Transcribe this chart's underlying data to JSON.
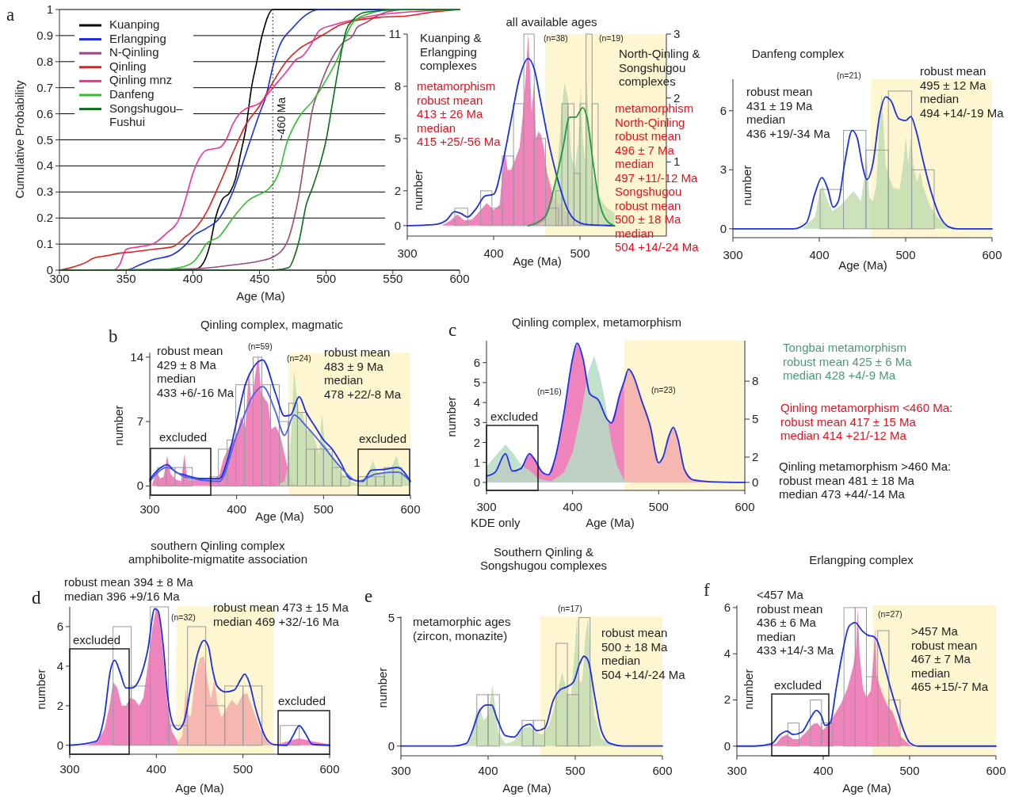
{
  "chart_data": [
    {
      "type": "line",
      "xlabel": "Age (Ma)",
      "ylabel": "Cumulative Probability",
      "xlim": [
        300,
        600
      ],
      "ylim": [
        0,
        1
      ],
      "xticks": [
        300,
        350,
        400,
        450,
        500,
        550,
        600
      ],
      "yticks": [
        0,
        0.1,
        0.2,
        0.3,
        0.4,
        0.5,
        0.6,
        0.7,
        0.8,
        0.9,
        1
      ],
      "grid": "y",
      "legend": "top left",
      "annotations": [
        "a"
      ],
      "ref_lines": [
        {
          "axis": "x",
          "value": 460,
          "label": "~460 Ma",
          "line_style": "dotted",
          "color": "#333333"
        }
      ],
      "series": [
        {
          "name": "Kuanping",
          "color": "#000000",
          "x": [
            300,
            400,
            405,
            410,
            413,
            417,
            422,
            428,
            432,
            436,
            440,
            444,
            448,
            451,
            453,
            456,
            460,
            600
          ],
          "values": [
            0,
            0,
            0.01,
            0.05,
            0.1,
            0.2,
            0.27,
            0.3,
            0.35,
            0.45,
            0.55,
            0.7,
            0.8,
            0.88,
            0.92,
            0.97,
            1,
            1
          ]
        },
        {
          "name": "Erlangping",
          "color": "#1a2ee6",
          "x": [
            300,
            350,
            360,
            370,
            385,
            395,
            400,
            410,
            420,
            430,
            440,
            450,
            455,
            460,
            465,
            475,
            485,
            495,
            600
          ],
          "values": [
            0,
            0,
            0.02,
            0.04,
            0.06,
            0.1,
            0.13,
            0.16,
            0.2,
            0.3,
            0.45,
            0.6,
            0.67,
            0.78,
            0.86,
            0.93,
            0.98,
            1,
            1
          ]
        },
        {
          "name": "N-Qinling",
          "color": "#9b4a7e",
          "x": [
            300,
            400,
            430,
            450,
            460,
            470,
            476,
            480,
            483,
            486,
            489,
            495,
            503,
            512,
            520,
            523,
            530,
            540,
            545,
            560,
            600
          ],
          "values": [
            0,
            0.005,
            0.02,
            0.035,
            0.05,
            0.1,
            0.2,
            0.3,
            0.4,
            0.5,
            0.6,
            0.7,
            0.8,
            0.87,
            0.9,
            0.93,
            0.95,
            0.98,
            0.99,
            1,
            1
          ]
        },
        {
          "name": "Qinling",
          "color": "#e0201e",
          "x": [
            300,
            305,
            315,
            320,
            325,
            335,
            345,
            355,
            370,
            385,
            395,
            400,
            410,
            420,
            430,
            440,
            450,
            460,
            470,
            480,
            490,
            500,
            510,
            520,
            540,
            560,
            580,
            600
          ],
          "values": [
            0,
            0.005,
            0.02,
            0.03,
            0.045,
            0.055,
            0.065,
            0.07,
            0.08,
            0.09,
            0.13,
            0.15,
            0.22,
            0.33,
            0.45,
            0.56,
            0.63,
            0.72,
            0.8,
            0.85,
            0.88,
            0.91,
            0.94,
            0.955,
            0.97,
            0.975,
            0.99,
            1
          ]
        },
        {
          "name": "Qinling mnz",
          "color": "#f0309a",
          "x": [
            300,
            340,
            345,
            350,
            360,
            370,
            380,
            390,
            395,
            400,
            405,
            410,
            420,
            425,
            430,
            435,
            440,
            450,
            460,
            470,
            478,
            482,
            488,
            495,
            505,
            520,
            540,
            560,
            600
          ],
          "values": [
            0,
            0,
            0.02,
            0.08,
            0.09,
            0.1,
            0.14,
            0.2,
            0.28,
            0.37,
            0.43,
            0.46,
            0.47,
            0.5,
            0.56,
            0.6,
            0.62,
            0.64,
            0.7,
            0.76,
            0.81,
            0.82,
            0.86,
            0.92,
            0.94,
            0.96,
            0.98,
            0.99,
            1
          ]
        },
        {
          "name": "Danfeng",
          "color": "#2ec02a",
          "x": [
            300,
            370,
            390,
            400,
            405,
            410,
            420,
            430,
            440,
            460,
            465,
            470,
            480,
            490,
            500,
            510,
            515,
            520,
            530,
            550,
            600
          ],
          "values": [
            0,
            0,
            0.01,
            0.03,
            0.06,
            0.1,
            0.13,
            0.2,
            0.26,
            0.33,
            0.38,
            0.48,
            0.59,
            0.65,
            0.73,
            0.83,
            0.9,
            0.95,
            0.98,
            1,
            1
          ]
        },
        {
          "name": "Songshugou–\nFushui",
          "color": "#0a6e1e",
          "x": [
            300,
            460,
            472,
            476,
            480,
            485,
            490,
            495,
            500,
            505,
            510,
            515,
            520,
            530,
            560,
            600
          ],
          "values": [
            0,
            0,
            0.01,
            0.05,
            0.12,
            0.25,
            0.32,
            0.4,
            0.5,
            0.65,
            0.8,
            0.92,
            0.96,
            0.99,
            1,
            1
          ]
        }
      ]
    },
    {
      "type": "area",
      "title": "all available ages",
      "xlabel": "Age (Ma)",
      "ylabel": "number",
      "xlim": [
        300,
        600
      ],
      "ylim": [
        -0.6,
        11
      ],
      "xticks": [
        300,
        400,
        500
      ],
      "yticks": [
        0,
        2,
        5,
        8,
        11
      ],
      "y2lim": [
        -0.16,
        3
      ],
      "y2ticks": [
        1,
        2,
        3
      ],
      "bands": [
        {
          "axis": "x",
          "from": 460,
          "to": 600,
          "color": "#fdf6d0"
        }
      ],
      "annotations": [
        "Kuanping &\nErlangping\ncomplexes",
        "metamorphism\nrobust mean\n413 ± 26 Ma\nmedian\n415 +25/-56 Ma",
        "(n=38)",
        "(n=19)",
        "North-Qinling &\nSongshugou\ncomplexes",
        "metamorphism\nNorth-Qinling\nrobust mean\n496 ± 7 Ma\nmedian\n497 +11/-12 Ma\nSongshugou\nrobust mean\n500 ± 18 Ma\nmedian\n504 +14/-24 Ma"
      ],
      "series": [
        {
          "type": "area",
          "color": "#ec6fb2",
          "x": [
            340,
            350,
            358,
            366,
            375,
            385,
            392,
            400,
            407,
            411,
            413,
            416,
            420,
            425,
            430,
            434,
            437,
            440,
            442,
            444,
            447,
            449,
            452,
            455,
            458,
            462,
            470,
            478,
            485,
            495,
            505,
            515
          ],
          "values": [
            0,
            0.3,
            0.65,
            0.3,
            0.35,
            0.9,
            1.3,
            0.9,
            1.2,
            3.5,
            4.4,
            3.2,
            3.2,
            3.8,
            4.5,
            6.5,
            8.5,
            11,
            9,
            6.5,
            8.3,
            5,
            5.4,
            5.2,
            4.5,
            3,
            1.5,
            1.2,
            0.8,
            0.3,
            0.05,
            0
          ]
        },
        {
          "type": "area",
          "color": "#c2ddb0",
          "axis": "y2",
          "x": [
            450,
            460,
            468,
            474,
            478,
            482,
            486,
            490,
            494,
            498,
            501,
            503,
            506,
            508,
            511,
            515,
            520,
            530,
            540
          ],
          "values": [
            0,
            0.1,
            0.4,
            0.9,
            1.7,
            2.25,
            2.0,
            1.1,
            0.9,
            1.3,
            2.2,
            1.4,
            1.0,
            2.3,
            1.3,
            0.8,
            0.5,
            0.3,
            0.2
          ]
        },
        {
          "type": "histogram",
          "color": "#9a9a9a",
          "bins": [
            355,
            370,
            385,
            398,
            410,
            423,
            435,
            447,
            460,
            475
          ],
          "values": [
            1,
            0,
            2,
            1,
            4,
            7,
            11,
            5,
            1
          ]
        },
        {
          "type": "histogram",
          "color": "#9a9a9a",
          "bins": [
            472,
            479,
            486,
            493,
            500,
            507,
            514,
            521
          ],
          "values": [
            2,
            7,
            7,
            3,
            7,
            11,
            7
          ]
        },
        {
          "type": "line",
          "color": "#1a2ee6",
          "x": [
            300,
            330,
            345,
            355,
            362,
            370,
            380,
            390,
            400,
            410,
            420,
            430,
            440,
            447,
            455,
            465,
            475,
            485,
            495,
            510,
            540
          ],
          "values": [
            0,
            0.05,
            0.3,
            0.8,
            0.7,
            0.5,
            1,
            1.7,
            1.8,
            3.5,
            6,
            8.5,
            9.6,
            9,
            7,
            4.5,
            2.5,
            1,
            0.3,
            0.05,
            0
          ]
        },
        {
          "type": "line",
          "color": "#1c9a3c",
          "axis": "y2",
          "x": [
            440,
            460,
            470,
            480,
            488,
            495,
            503,
            508,
            515,
            522,
            530,
            540
          ],
          "values": [
            0,
            0.15,
            0.6,
            1.2,
            1.7,
            1.7,
            1.85,
            1.7,
            1.0,
            0.4,
            0.1,
            0
          ]
        }
      ]
    },
    {
      "type": "area",
      "title": "Danfeng complex",
      "xlabel": "Age (Ma)",
      "ylabel": "number",
      "xlim": [
        300,
        600
      ],
      "ylim": [
        -0.45,
        7.6
      ],
      "xticks": [
        300,
        400,
        500,
        600
      ],
      "yticks": [
        0,
        3,
        6
      ],
      "bands": [
        {
          "axis": "x",
          "from": 460,
          "to": 600,
          "color": "#fdf6d0"
        }
      ],
      "annotations": [
        "(n=21)",
        "robust mean\n431 ± 19 Ma\nmedian\n436 +19/-34 Ma",
        "robust mean\n495 ± 12 Ma\nmedian\n494 +14/-19 Ma"
      ],
      "series": [
        {
          "type": "area",
          "color": "#c2ddb0",
          "x": [
            380,
            395,
            400,
            404,
            408,
            415,
            425,
            435,
            440,
            448,
            452,
            455,
            458,
            462,
            466,
            470,
            472,
            474,
            477,
            485,
            493,
            498,
            500,
            503,
            506,
            509,
            513,
            517,
            520,
            528,
            535,
            545,
            555,
            600
          ],
          "values": [
            0,
            0.6,
            1.8,
            2.2,
            1.6,
            0.9,
            1.2,
            1.7,
            1.9,
            1.4,
            2.5,
            3.6,
            1.6,
            1.4,
            2.2,
            5.5,
            7.0,
            5.5,
            3.2,
            2.1,
            2.0,
            3.6,
            4.7,
            3.3,
            4.7,
            3.2,
            2.4,
            2.9,
            2.2,
            1.2,
            0.7,
            0.2,
            0,
            0
          ]
        },
        {
          "type": "histogram",
          "color": "#9a9a9a",
          "bins": [
            401,
            428,
            454,
            480,
            507,
            533
          ],
          "values": [
            2,
            5,
            4,
            7,
            3
          ]
        },
        {
          "type": "line",
          "color": "#1a2ee6",
          "x": [
            300,
            370,
            385,
            395,
            403,
            410,
            416,
            422,
            430,
            438,
            444,
            450,
            455,
            462,
            470,
            477,
            483,
            492,
            500,
            506,
            512,
            520,
            530,
            540,
            550,
            560,
            600
          ],
          "values": [
            0,
            0,
            0.3,
            1.8,
            2.6,
            2.0,
            1.1,
            1.4,
            3.5,
            5.0,
            4.6,
            3.2,
            2.5,
            3.3,
            5.8,
            6.7,
            6.5,
            5.6,
            5.5,
            5.7,
            5.0,
            3.5,
            1.8,
            0.6,
            0.1,
            0,
            0
          ]
        }
      ]
    },
    {
      "type": "area",
      "title": "Qinling complex, magmatic",
      "xlabel": "Age (Ma)",
      "ylabel": "number",
      "xlim": [
        300,
        600
      ],
      "ylim": [
        -1,
        14.5
      ],
      "xticks": [
        300,
        400,
        500,
        600
      ],
      "yticks": [
        0,
        7,
        14
      ],
      "bands": [
        {
          "axis": "x",
          "from": 460,
          "to": 600,
          "color": "#fdf6d0"
        }
      ],
      "annotations": [
        "b",
        "robust mean\n429 ± 8 Ma\nmedian\n433 +6/-16 Ma",
        "(n=59)",
        "(n=24)",
        "robust mean\n483 ± 9 Ma\nmedian\n478 +22/-8 Ma",
        "excluded",
        "excluded"
      ],
      "series": [
        {
          "type": "area",
          "color": "#ec6fb2",
          "x": [
            303,
            308,
            312,
            316,
            320,
            324,
            330,
            336,
            340,
            343,
            350,
            360,
            368,
            375,
            380,
            385,
            390,
            395,
            400,
            405,
            410,
            414,
            417,
            422,
            425,
            428,
            432,
            436,
            440,
            445,
            450,
            455,
            460,
            465,
            470
          ],
          "values": [
            0.3,
            1.5,
            0.8,
            1.0,
            3.3,
            1.3,
            0.7,
            0.5,
            3.5,
            0.8,
            0.6,
            0.9,
            0.9,
            0.8,
            1.2,
            3.0,
            4.0,
            4.8,
            5.5,
            7.5,
            6.4,
            12.5,
            9.0,
            12.5,
            14.3,
            10.3,
            9.5,
            9.0,
            6.2,
            6.5,
            5.5,
            3.5,
            1.5,
            0.3,
            0
          ]
        },
        {
          "type": "area",
          "color": "#c2ddb0",
          "x": [
            445,
            455,
            460,
            463,
            466,
            469,
            472,
            476,
            480,
            485,
            490,
            495,
            498,
            502,
            508,
            515,
            520,
            530,
            540,
            550,
            557,
            562,
            570,
            578,
            584,
            590,
            600
          ],
          "values": [
            0,
            0.5,
            2.5,
            6.0,
            12.7,
            10,
            8.0,
            8.0,
            6.0,
            6.2,
            5.0,
            3.5,
            7.8,
            4.5,
            3.5,
            2.5,
            1.5,
            0.5,
            0.2,
            1.2,
            2.7,
            1.5,
            1.4,
            2.0,
            3.3,
            1.2,
            0.5
          ]
        },
        {
          "type": "histogram",
          "color": "#9a9a9a",
          "bins": [
            309,
            319,
            329,
            339,
            349,
            359,
            369,
            379,
            389,
            399,
            409,
            419,
            429,
            439,
            449,
            459
          ],
          "values": [
            2,
            2,
            2,
            2,
            0,
            0,
            1,
            4,
            5,
            11,
            11,
            14,
            11,
            11,
            7
          ]
        },
        {
          "type": "histogram",
          "color": "#9a9a9a",
          "bins": [
            460,
            470,
            480,
            490,
            500,
            510,
            520,
            530,
            540,
            550,
            560,
            570,
            580,
            590,
            600
          ],
          "values": [
            9,
            8,
            4,
            4,
            4,
            2,
            1,
            0,
            1,
            1,
            1,
            2,
            2,
            0
          ]
        },
        {
          "type": "line",
          "color": "#1a2ee6",
          "x": [
            300,
            310,
            320,
            330,
            340,
            360,
            380,
            390,
            400,
            410,
            420,
            430,
            445,
            455,
            462,
            472,
            480,
            490,
            500,
            510,
            520,
            530,
            545,
            555,
            570,
            585,
            600
          ],
          "values": [
            0.7,
            1.8,
            2.3,
            1.5,
            1.2,
            0.8,
            0.8,
            3,
            7,
            11,
            13,
            13.7,
            10,
            7.6,
            7.7,
            9.7,
            8,
            6.5,
            5,
            4,
            2.5,
            0.8,
            0.5,
            1.7,
            1.8,
            2.0,
            0.5
          ]
        },
        {
          "type": "line",
          "color": "#4a62e8",
          "x": [
            300,
            320,
            340,
            380,
            400,
            420,
            430,
            445,
            455,
            466,
            480,
            500,
            520,
            540,
            560,
            585,
            600
          ],
          "values": [
            0.5,
            2.0,
            1.0,
            0.5,
            5.5,
            10,
            10.8,
            8,
            5.5,
            7.7,
            6.5,
            4.3,
            2,
            0.5,
            1.3,
            1.5,
            0.5
          ]
        }
      ]
    },
    {
      "type": "area",
      "title": "Qinling complex, metamorphism",
      "xlabel": "Age (Ma)",
      "ylabel": "number",
      "xlim": [
        300,
        600
      ],
      "ylim": [
        -0.4,
        7.1
      ],
      "xticks": [
        300,
        400,
        500,
        600
      ],
      "yticks": [
        0,
        1,
        2,
        3,
        4,
        5,
        6
      ],
      "y2lim": [
        -0.63,
        11.2
      ],
      "y2ticks": [
        0,
        2,
        5,
        8
      ],
      "bands": [
        {
          "axis": "x",
          "from": 460,
          "to": 600,
          "color": "#fdf6d0"
        }
      ],
      "annotations": [
        "c",
        "(n=16)",
        "(n=23)",
        "excluded",
        "KDE only",
        "Tongbai metamorphism\nrobust mean 425 ± 6 Ma\nmedian 428 +4/-9 Ma",
        "Qinling metamorphism <460 Ma:\nrobust mean 417 ± 15 Ma\nmedian 414 +21/-12 Ma",
        "Qinling metamorphism >460 Ma:\nrobust mean 481 ± 18 Ma\nmedian 473 +44/-14 Ma"
      ],
      "series": [
        {
          "type": "area",
          "color": "#ec6fb2",
          "axis": "y2",
          "x": [
            300,
            310,
            322,
            330,
            340,
            350,
            355,
            365,
            372,
            380,
            390,
            400,
            405,
            412,
            420,
            430,
            440,
            445,
            455,
            460
          ],
          "values": [
            0.5,
            0.8,
            2.27,
            0.9,
            1.1,
            2.27,
            1.9,
            0.8,
            0.6,
            2.0,
            5.5,
            9.8,
            11.0,
            9.8,
            7.0,
            6.5,
            5.0,
            4.7,
            7.0,
            8.0
          ]
        },
        {
          "type": "area",
          "color": "#f4acab",
          "axis": "y2",
          "x": [
            460,
            465,
            470,
            480,
            490,
            500,
            505,
            512,
            517,
            522,
            530,
            540,
            560,
            600
          ],
          "values": [
            8.0,
            8.95,
            8.5,
            6.5,
            4.5,
            1.55,
            2.0,
            3.7,
            4.36,
            3.5,
            1.0,
            0.2,
            0.05,
            0
          ]
        },
        {
          "type": "area",
          "color": "#b5dcc4",
          "x": [
            300,
            310,
            322,
            330,
            340,
            350,
            360,
            375,
            390,
            400,
            410,
            418,
            425,
            432,
            438,
            445,
            452,
            460,
            470
          ],
          "values": [
            0.8,
            1.3,
            1.9,
            1.5,
            0.9,
            0.6,
            0.2,
            0.05,
            0.5,
            1.5,
            3.5,
            5.5,
            6.35,
            5.3,
            4.0,
            2.0,
            0.8,
            0.1,
            0
          ]
        },
        {
          "type": "line",
          "color": "#1a2ee6",
          "axis": "y2",
          "x": [
            300,
            310,
            322,
            330,
            340,
            350,
            355,
            365,
            372,
            380,
            390,
            400,
            405,
            412,
            420,
            430,
            440,
            445,
            455,
            460,
            465,
            470,
            480,
            490,
            500,
            505,
            512,
            517,
            522,
            530,
            540,
            560,
            600
          ],
          "values": [
            0.5,
            0.8,
            2.27,
            0.9,
            1.1,
            2.27,
            1.9,
            0.8,
            0.6,
            2.0,
            5.5,
            9.8,
            11.0,
            9.8,
            7.0,
            6.5,
            5.0,
            4.7,
            7.0,
            8.0,
            8.95,
            8.5,
            6.5,
            4.5,
            1.55,
            2.0,
            3.7,
            4.36,
            3.5,
            1.0,
            0.2,
            0.05,
            0
          ]
        }
      ]
    },
    {
      "type": "area",
      "title": "southern Qinling complex\namphibolite-migmatite association",
      "xlabel": "Age (Ma)",
      "ylabel": "number",
      "xlim": [
        300,
        600
      ],
      "ylim": [
        -0.45,
        7
      ],
      "xticks": [
        300,
        400,
        500,
        600
      ],
      "yticks": [
        0,
        2,
        4,
        6
      ],
      "bands": [
        {
          "axis": "x",
          "from": 423,
          "to": 535,
          "color": "#fdf6d0"
        }
      ],
      "annotations": [
        "d",
        "robust mean 394 ± 8 Ma\nmedian 396 +9/16 Ma",
        "(n=32)",
        "robust mean 473 ± 15 Ma\nmedian 469 +32/-16 Ma",
        "excluded",
        "excluded"
      ],
      "series": [
        {
          "type": "area",
          "color": "#ec6fb2",
          "x": [
            300,
            320,
            330,
            340,
            346,
            350,
            355,
            360,
            365,
            370,
            375,
            380,
            385,
            390,
            395,
            400,
            403,
            408,
            413,
            418,
            425
          ],
          "values": [
            0,
            0.02,
            0.15,
            0.8,
            2.0,
            3.2,
            2.9,
            2.0,
            2.0,
            2.4,
            2.3,
            2.0,
            2.4,
            4.0,
            5.8,
            7.0,
            6.7,
            4.5,
            2.0,
            0.7,
            0.15
          ]
        },
        {
          "type": "area",
          "color": "#f4acab",
          "x": [
            425,
            430,
            434,
            437,
            440,
            445,
            450,
            455,
            460,
            463,
            467,
            470,
            475,
            480,
            487,
            493,
            500,
            505,
            510,
            520,
            530,
            535
          ],
          "values": [
            0.15,
            0.5,
            2.9,
            1.5,
            1.5,
            3.5,
            4.4,
            4.5,
            3.0,
            2.3,
            3.4,
            2.2,
            1.4,
            1.8,
            2.3,
            2.0,
            2.6,
            2.6,
            2.0,
            0.8,
            0.1,
            0.05
          ]
        },
        {
          "type": "area",
          "color": "#ec6fb2",
          "x": [
            535,
            540,
            555,
            565,
            580,
            600
          ],
          "values": [
            0.05,
            0.05,
            0.25,
            0.35,
            0.2,
            0.05
          ]
        },
        {
          "type": "histogram",
          "color": "#9a9a9a",
          "bins": [
            350,
            371,
            393,
            414,
            436,
            457,
            479,
            500,
            522,
            543,
            565
          ],
          "values": [
            6,
            3,
            7,
            1,
            6,
            2,
            3,
            3,
            0,
            1
          ]
        },
        {
          "type": "line",
          "color": "#1a2ee6",
          "x": [
            300,
            330,
            340,
            347,
            352,
            358,
            365,
            372,
            380,
            390,
            398,
            402,
            408,
            413,
            420,
            425,
            432,
            440,
            448,
            455,
            460,
            465,
            470,
            480,
            490,
            497,
            502,
            507,
            515,
            525,
            535,
            550,
            558,
            565,
            572,
            580,
            600
          ],
          "values": [
            0,
            0.2,
            1.5,
            3.8,
            4.3,
            3.7,
            2.9,
            2.9,
            3.3,
            4.8,
            6.9,
            6.8,
            5.0,
            2.5,
            1.0,
            0.8,
            1.2,
            3.0,
            4.7,
            5.3,
            5.0,
            3.8,
            3.0,
            2.7,
            2.8,
            3.3,
            3.6,
            3.2,
            1.8,
            0.5,
            0.05,
            0,
            0.5,
            1.0,
            0.6,
            0.05,
            0
          ]
        }
      ]
    },
    {
      "type": "area",
      "title": "Southern Qinling &\nSongshugou complexes",
      "xlabel": "Age (Ma)",
      "ylabel": "number",
      "xlim": [
        300,
        600
      ],
      "ylim": [
        -0.38,
        5.05
      ],
      "xticks": [
        300,
        400,
        500,
        600
      ],
      "yticks": [
        0,
        5
      ],
      "bands": [
        {
          "axis": "x",
          "from": 460,
          "to": 600,
          "color": "#fdf6d0"
        }
      ],
      "annotations": [
        "e",
        "metamorphic ages\n(zircon, monazite)",
        "(n=17)",
        "robust mean\n500 ± 18 Ma\nmedian\n504 +14/-24 Ma"
      ],
      "series": [
        {
          "type": "area",
          "color": "#c2ddb0",
          "x": [
            370,
            380,
            385,
            390,
            395,
            400,
            405,
            408,
            412,
            420,
            430,
            440,
            448,
            455,
            462,
            470,
            478,
            485,
            490,
            495,
            500,
            502,
            505,
            508,
            512,
            515,
            518,
            522,
            530,
            540,
            555,
            570
          ],
          "values": [
            0,
            0.3,
            1.2,
            1.5,
            1.0,
            1.2,
            2.4,
            1.6,
            0.5,
            0.1,
            0.2,
            0.7,
            0.75,
            0.55,
            0.45,
            0.8,
            1.8,
            2.9,
            2.1,
            1.9,
            4.0,
            5.0,
            2.5,
            2.5,
            4.4,
            5.0,
            3.0,
            1.2,
            0.3,
            0.1,
            0.02,
            0
          ]
        },
        {
          "type": "histogram",
          "color": "#9a9a9a",
          "bins": [
            387,
            400,
            413,
            426,
            439,
            452,
            465,
            478,
            491,
            504,
            517
          ],
          "values": [
            2,
            2,
            0,
            0,
            1,
            1,
            0,
            4,
            2,
            5
          ]
        },
        {
          "type": "line",
          "color": "#1a2ee6",
          "x": [
            300,
            360,
            375,
            382,
            390,
            398,
            404,
            410,
            420,
            430,
            440,
            448,
            456,
            465,
            475,
            483,
            490,
            498,
            505,
            510,
            515,
            522,
            530,
            540,
            555,
            600
          ],
          "values": [
            0,
            0,
            0.1,
            0.6,
            1.35,
            1.6,
            1.6,
            1.1,
            0.4,
            0.35,
            0.75,
            0.85,
            0.6,
            0.7,
            1.8,
            2.2,
            2.3,
            2.5,
            3.2,
            3.5,
            3.3,
            2.0,
            0.6,
            0.1,
            0,
            0
          ]
        }
      ]
    },
    {
      "type": "area",
      "title": "Erlangping complex",
      "xlabel": "Age (Ma)",
      "ylabel": "number",
      "xlim": [
        300,
        600
      ],
      "ylim": [
        -0.42,
        6.1
      ],
      "xticks": [
        300,
        400,
        500,
        600
      ],
      "yticks": [
        0,
        2,
        4,
        6
      ],
      "bands": [
        {
          "axis": "x",
          "from": 457,
          "to": 600,
          "color": "#fdf6d0"
        }
      ],
      "annotations": [
        "f",
        "<457 Ma\nrobust mean\n436 ± 6 Ma\nmedian\n433 +14/-3 Ma",
        "(n=27)",
        ">457 Ma\nrobust mean\n467 ± 7 Ma\nmedian\n465 +15/-7 Ma",
        "excluded"
      ],
      "series": [
        {
          "type": "area",
          "color": "#ec6fb2",
          "x": [
            330,
            345,
            352,
            358,
            365,
            372,
            380,
            388,
            393,
            400,
            405,
            412,
            420,
            428,
            435,
            438,
            440,
            442,
            446,
            450,
            455,
            458,
            460,
            462,
            468,
            475,
            480,
            485,
            490,
            500,
            510
          ],
          "values": [
            0,
            0.1,
            0.4,
            0.5,
            0.3,
            0.3,
            0.6,
            0.95,
            1.0,
            0.7,
            0.9,
            1.3,
            1.8,
            2.5,
            3.5,
            4.3,
            6.0,
            4.0,
            2.5,
            2.1,
            2.4,
            3.8,
            5.1,
            3.0,
            2.3,
            1.7,
            1.5,
            1.0,
            0.4,
            0.05,
            0
          ]
        },
        {
          "type": "histogram",
          "color": "#9a9a9a",
          "bins": [
            359,
            372,
            385,
            398,
            411,
            424,
            437,
            450,
            463,
            476,
            489
          ],
          "values": [
            1,
            0,
            2,
            1,
            0,
            6,
            6,
            3,
            5,
            2
          ]
        },
        {
          "type": "line",
          "color": "#1a2ee6",
          "x": [
            300,
            320,
            340,
            350,
            358,
            365,
            375,
            385,
            392,
            398,
            402,
            408,
            415,
            422,
            430,
            437,
            445,
            452,
            458,
            462,
            470,
            478,
            486,
            493,
            500,
            510,
            600
          ],
          "values": [
            0,
            0,
            0.1,
            0.5,
            0.65,
            0.5,
            0.6,
            1.2,
            1.55,
            1.3,
            0.9,
            1.0,
            2.5,
            4.0,
            5.2,
            5.35,
            5.0,
            4.8,
            4.75,
            4.6,
            3.6,
            2.5,
            1.5,
            0.7,
            0.15,
            0,
            0
          ]
        }
      ]
    }
  ]
}
